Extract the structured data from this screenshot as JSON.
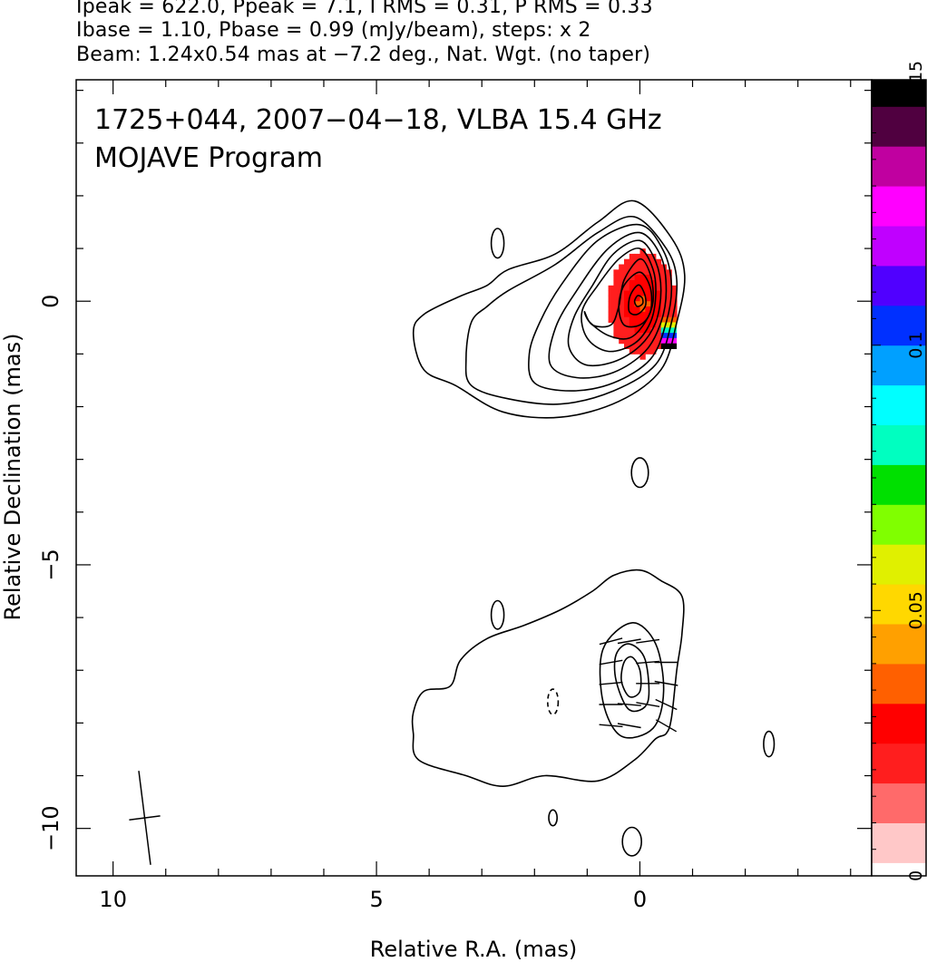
{
  "header": {
    "line1": "Ipeak = 622.0, Ppeak = 7.1, I RMS = 0.31, P RMS = 0.33",
    "line2": "Ibase = 1.10, Pbase = 0.99 (mJy/beam), steps: x 2",
    "line3": "Beam: 1.24x0.54 mas at −7.2 deg., Nat. Wgt. (no taper)"
  },
  "chart_data": {
    "type": "contour",
    "title": "1725+044, 2007−04−18, VLBA 15.4 GHz",
    "subtitle": "MOJAVE Program",
    "xlabel": "Relative R.A. (mas)",
    "ylabel": "Relative Declination (mas)",
    "xlim": [
      10.7,
      -4.4
    ],
    "ylim": [
      -10.9,
      4.2
    ],
    "x_ticks": [
      10,
      5,
      0
    ],
    "x_tick_labels": [
      "10",
      "5",
      "0"
    ],
    "y_ticks": [
      0,
      -5,
      -10
    ],
    "y_tick_labels": [
      "0",
      "−5",
      "−10"
    ],
    "colorbar": {
      "min": 0,
      "max": 0.15,
      "ticks": [
        0,
        0.05,
        0.1,
        0.15
      ],
      "tick_labels": [
        "0",
        "0.05",
        "0.1",
        "0.15"
      ],
      "colors": [
        "#ffffff",
        "#ffc8c8",
        "#ff6a6a",
        "#ff1e1e",
        "#ff0000",
        "#ff6000",
        "#ffa000",
        "#ffd800",
        "#e0f000",
        "#80ff00",
        "#00e000",
        "#00ffc0",
        "#00ffff",
        "#00a0ff",
        "#0030ff",
        "#5000ff",
        "#c000ff",
        "#ff00ff",
        "#c000a0",
        "#500040",
        "#000000"
      ]
    },
    "beam": {
      "major_mas": 1.24,
      "minor_mas": 0.54,
      "pa_deg": -7.2,
      "center": [
        9.4,
        -9.8
      ]
    },
    "main_component": {
      "ra": 0.0,
      "dec": 0.0,
      "contours": [
        [
          [
            0.1,
            1.9
          ],
          [
            -0.6,
            1.2
          ],
          [
            -0.85,
            0.5
          ],
          [
            -0.7,
            -0.4
          ],
          [
            -0.4,
            -1.3
          ],
          [
            0.4,
            -1.9
          ],
          [
            1.5,
            -2.2
          ],
          [
            2.6,
            -2.1
          ],
          [
            3.5,
            -1.6
          ],
          [
            4.1,
            -1.3
          ],
          [
            4.3,
            -0.6
          ],
          [
            4.1,
            -0.25
          ],
          [
            3.4,
            0.1
          ],
          [
            2.9,
            0.3
          ],
          [
            2.5,
            0.6
          ],
          [
            1.6,
            0.9
          ],
          [
            0.8,
            1.5
          ]
        ],
        [
          [
            0.1,
            1.6
          ],
          [
            -0.5,
            1.0
          ],
          [
            -0.7,
            0.4
          ],
          [
            -0.6,
            -0.4
          ],
          [
            -0.3,
            -1.2
          ],
          [
            0.5,
            -1.7
          ],
          [
            1.5,
            -1.95
          ],
          [
            2.5,
            -1.85
          ],
          [
            3.2,
            -1.6
          ],
          [
            3.3,
            -1.1
          ],
          [
            3.2,
            -0.4
          ],
          [
            2.9,
            -0.1
          ],
          [
            2.5,
            0.2
          ],
          [
            1.6,
            0.7
          ],
          [
            0.8,
            1.3
          ]
        ],
        [
          [
            0.0,
            1.45
          ],
          [
            -0.45,
            0.95
          ],
          [
            -0.6,
            0.3
          ],
          [
            -0.5,
            -0.4
          ],
          [
            -0.2,
            -1.1
          ],
          [
            0.5,
            -1.55
          ],
          [
            1.3,
            -1.7
          ],
          [
            2.0,
            -1.55
          ],
          [
            2.1,
            -1.0
          ],
          [
            1.9,
            -0.4
          ],
          [
            1.5,
            0.3
          ],
          [
            0.8,
            1.15
          ]
        ],
        [
          [
            0.0,
            1.3
          ],
          [
            -0.4,
            0.85
          ],
          [
            -0.5,
            0.2
          ],
          [
            -0.4,
            -0.4
          ],
          [
            -0.1,
            -0.95
          ],
          [
            0.5,
            -1.35
          ],
          [
            1.2,
            -1.45
          ],
          [
            1.7,
            -1.2
          ],
          [
            1.6,
            -0.5
          ],
          [
            1.2,
            0.2
          ],
          [
            0.6,
            1.0
          ]
        ],
        [
          [
            0.0,
            1.15
          ],
          [
            -0.3,
            0.75
          ],
          [
            -0.4,
            0.2
          ],
          [
            -0.3,
            -0.4
          ],
          [
            0.0,
            -0.85
          ],
          [
            0.5,
            -1.15
          ],
          [
            1.05,
            -1.2
          ],
          [
            1.35,
            -0.85
          ],
          [
            1.25,
            -0.3
          ],
          [
            0.9,
            0.3
          ],
          [
            0.5,
            0.9
          ]
        ],
        [
          [
            0.0,
            1.0
          ],
          [
            -0.25,
            0.6
          ],
          [
            -0.3,
            0.1
          ],
          [
            -0.2,
            -0.4
          ],
          [
            0.1,
            -0.8
          ],
          [
            0.6,
            -0.95
          ],
          [
            1.0,
            -0.7
          ],
          [
            1.1,
            -0.2
          ],
          [
            0.8,
            0.3
          ],
          [
            0.4,
            0.8
          ]
        ],
        [
          [
            0.0,
            0.8
          ],
          [
            -0.2,
            0.5
          ],
          [
            -0.25,
            0.0
          ],
          [
            -0.1,
            -0.4
          ],
          [
            0.2,
            -0.7
          ],
          [
            0.6,
            -0.65
          ],
          [
            0.95,
            -0.4
          ],
          [
            1.05,
            -0.2
          ],
          [
            0.9,
            -0.45
          ],
          [
            0.55,
            -0.45
          ],
          [
            0.4,
            -0.1
          ],
          [
            0.3,
            0.4
          ]
        ],
        [
          [
            0.0,
            0.55
          ],
          [
            -0.2,
            0.25
          ],
          [
            -0.2,
            -0.2
          ],
          [
            0.0,
            -0.45
          ],
          [
            0.3,
            -0.45
          ],
          [
            0.4,
            -0.1
          ],
          [
            0.3,
            0.3
          ]
        ],
        [
          [
            0.0,
            0.3
          ],
          [
            -0.1,
            0.1
          ],
          [
            -0.1,
            -0.1
          ],
          [
            0.05,
            -0.25
          ],
          [
            0.2,
            -0.2
          ],
          [
            0.2,
            0.05
          ],
          [
            0.1,
            0.25
          ]
        ],
        [
          [
            0.0,
            0.1
          ],
          [
            -0.05,
            0.05
          ],
          [
            -0.05,
            -0.05
          ],
          [
            0.05,
            -0.1
          ],
          [
            0.1,
            0.0
          ],
          [
            0.05,
            0.1
          ]
        ]
      ]
    },
    "secondary_component": {
      "ra": 0.2,
      "dec": -7.2,
      "outer_contour": [
        [
          0.0,
          -5.1
        ],
        [
          -0.4,
          -5.3
        ],
        [
          -0.8,
          -5.6
        ],
        [
          -0.8,
          -6.3
        ],
        [
          -0.7,
          -7.0
        ],
        [
          -0.6,
          -7.9
        ],
        [
          -0.5,
          -8.2
        ],
        [
          -0.3,
          -8.3
        ],
        [
          0.1,
          -8.7
        ],
        [
          0.8,
          -9.1
        ],
        [
          1.8,
          -9.0
        ],
        [
          2.6,
          -9.2
        ],
        [
          3.3,
          -9.0
        ],
        [
          4.2,
          -8.7
        ],
        [
          4.3,
          -8.2
        ],
        [
          4.3,
          -7.8
        ],
        [
          4.1,
          -7.4
        ],
        [
          3.6,
          -7.3
        ],
        [
          3.4,
          -6.8
        ],
        [
          2.9,
          -6.4
        ],
        [
          2.2,
          -6.15
        ],
        [
          1.5,
          -5.85
        ],
        [
          0.9,
          -5.5
        ],
        [
          0.5,
          -5.2
        ]
      ],
      "inner_contours": [
        [
          [
            0.15,
            -6.1
          ],
          [
            -0.3,
            -6.5
          ],
          [
            -0.45,
            -7.4
          ],
          [
            -0.25,
            -8.1
          ],
          [
            0.35,
            -8.25
          ],
          [
            0.7,
            -7.6
          ],
          [
            0.7,
            -6.6
          ]
        ],
        [
          [
            0.2,
            -6.5
          ],
          [
            -0.1,
            -6.8
          ],
          [
            -0.15,
            -7.6
          ],
          [
            0.2,
            -7.75
          ],
          [
            0.45,
            -7.2
          ],
          [
            0.45,
            -6.7
          ]
        ],
        [
          [
            0.15,
            -6.75
          ],
          [
            0.0,
            -7.0
          ],
          [
            0.0,
            -7.4
          ],
          [
            0.2,
            -7.5
          ],
          [
            0.35,
            -7.2
          ],
          [
            0.3,
            -6.85
          ]
        ]
      ],
      "vectors": [
        {
          "ra": 0.55,
          "dec": -6.45,
          "angle_deg": 15
        },
        {
          "ra": 0.2,
          "dec": -6.45,
          "angle_deg": 10
        },
        {
          "ra": -0.15,
          "dec": -6.45,
          "angle_deg": 8
        },
        {
          "ra": 0.55,
          "dec": -6.85,
          "angle_deg": 10
        },
        {
          "ra": -0.15,
          "dec": -6.85,
          "angle_deg": 5
        },
        {
          "ra": -0.5,
          "dec": -6.85,
          "angle_deg": 0
        },
        {
          "ra": 0.55,
          "dec": -7.25,
          "angle_deg": 5
        },
        {
          "ra": -0.15,
          "dec": -7.25,
          "angle_deg": 0
        },
        {
          "ra": -0.5,
          "dec": -7.25,
          "angle_deg": -10
        },
        {
          "ra": 0.55,
          "dec": -7.65,
          "angle_deg": 0
        },
        {
          "ra": 0.2,
          "dec": -7.65,
          "angle_deg": -5
        },
        {
          "ra": -0.15,
          "dec": -7.65,
          "angle_deg": -10
        },
        {
          "ra": -0.5,
          "dec": -7.65,
          "angle_deg": -25
        },
        {
          "ra": 0.55,
          "dec": -8.05,
          "angle_deg": -5
        },
        {
          "ra": 0.2,
          "dec": -8.05,
          "angle_deg": -10
        },
        {
          "ra": -0.5,
          "dec": -8.05,
          "angle_deg": -30
        }
      ]
    },
    "isolated_contours": [
      {
        "ra": 2.7,
        "dec": 1.1,
        "rx": 0.12,
        "ry": 0.28,
        "dashed": false
      },
      {
        "ra": 0.0,
        "dec": -3.25,
        "rx": 0.16,
        "ry": 0.28,
        "dashed": false
      },
      {
        "ra": 2.7,
        "dec": -5.95,
        "rx": 0.12,
        "ry": 0.27,
        "dashed": false
      },
      {
        "ra": 1.65,
        "dec": -7.6,
        "rx": 0.1,
        "ry": 0.24,
        "dashed": true
      },
      {
        "ra": -2.45,
        "dec": -8.4,
        "rx": 0.1,
        "ry": 0.24,
        "dashed": false
      },
      {
        "ra": 1.65,
        "dec": -9.8,
        "rx": 0.08,
        "ry": 0.15,
        "dashed": false
      },
      {
        "ra": 0.15,
        "dec": -10.25,
        "rx": 0.18,
        "ry": 0.27,
        "dashed": false
      }
    ],
    "polarization_image": {
      "center": [
        0.0,
        0.0
      ],
      "extent_ra": [
        0.7,
        -0.6
      ],
      "extent_dec": [
        1.0,
        -1.0
      ],
      "base_fraction": 0.02,
      "edge_highlight": {
        "ra": -0.55,
        "dec": -0.6,
        "fraction": 0.15
      }
    }
  }
}
